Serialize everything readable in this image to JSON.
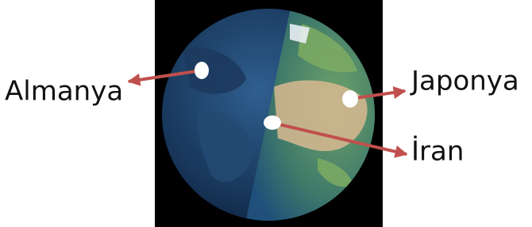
{
  "labels": [
    "Almanya",
    "Japonya",
    "İran"
  ]
}
